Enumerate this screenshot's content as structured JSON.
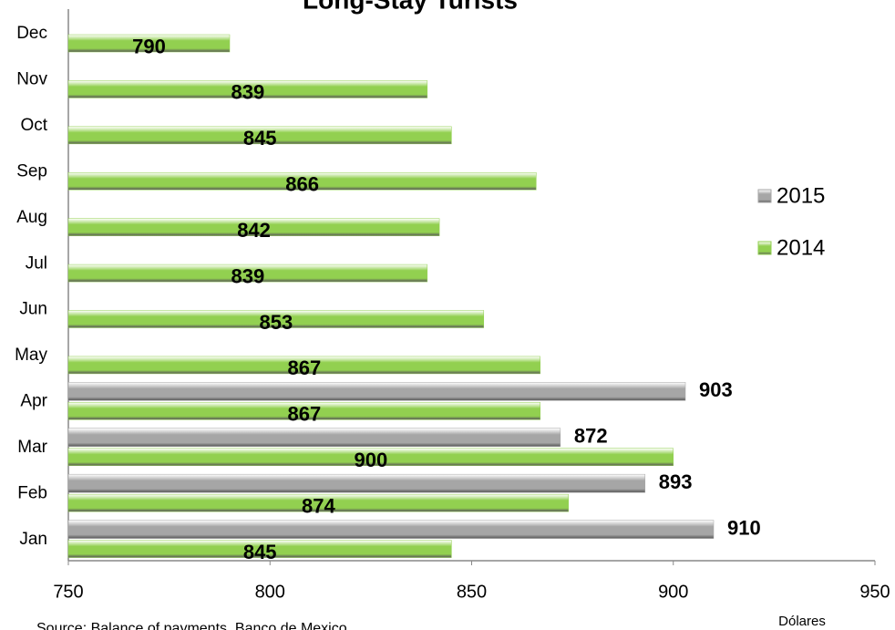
{
  "chart_data": {
    "type": "bar",
    "orientation": "horizontal",
    "title": "Long-Stay Turists",
    "source": "Source: Balance of payments, Banco de Mexico",
    "x_label": "Dólares",
    "categories": [
      "Jan",
      "Feb",
      "Mar",
      "Apr",
      "May",
      "Jun",
      "Jul",
      "Aug",
      "Sep",
      "Oct",
      "Nov",
      "Dec"
    ],
    "series": [
      {
        "name": "2015",
        "color": "#a6a6a6",
        "values": [
          910,
          893,
          872,
          903,
          null,
          null,
          null,
          null,
          null,
          null,
          null,
          null
        ]
      },
      {
        "name": "2014",
        "color": "#92d050",
        "values": [
          845,
          874,
          900,
          867,
          867,
          853,
          839,
          842,
          866,
          845,
          839,
          790
        ]
      }
    ],
    "xlim": [
      750,
      950
    ],
    "xticks": [
      750,
      800,
      850,
      900,
      950
    ],
    "grid": false,
    "legend": "right"
  }
}
